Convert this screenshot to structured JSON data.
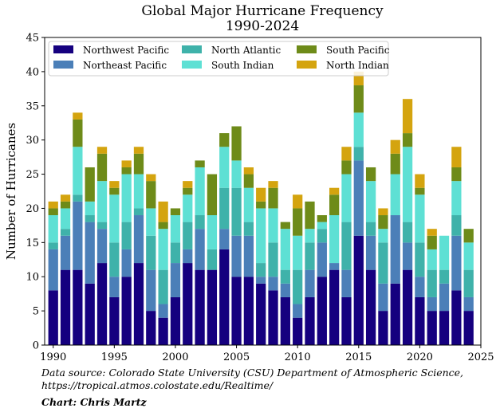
{
  "chart_data": {
    "type": "bar",
    "stacked": true,
    "title": "Global Major Hurricane Frequency",
    "subtitle": "1990-2024",
    "xlabel": "",
    "ylabel": "Number of Hurricanes",
    "xlim": [
      1989.3,
      2025
    ],
    "ylim": [
      0,
      45
    ],
    "xticks": [
      1990,
      1995,
      2000,
      2005,
      2010,
      2015,
      2020,
      2025
    ],
    "yticks": [
      0,
      5,
      10,
      15,
      20,
      25,
      30,
      35,
      40,
      45
    ],
    "legend_position": "top-left",
    "x": [
      1990,
      1991,
      1992,
      1993,
      1994,
      1995,
      1996,
      1997,
      1998,
      1999,
      2000,
      2001,
      2002,
      2003,
      2004,
      2005,
      2006,
      2007,
      2008,
      2009,
      2010,
      2011,
      2012,
      2013,
      2014,
      2015,
      2016,
      2017,
      2018,
      2019,
      2020,
      2021,
      2022,
      2023,
      2024
    ],
    "series": [
      {
        "name": "Northwest Pacific",
        "color": "#15007F",
        "values": [
          8,
          11,
          11,
          9,
          12,
          7,
          10,
          12,
          5,
          4,
          7,
          12,
          11,
          11,
          14,
          10,
          10,
          9,
          8,
          7,
          4,
          7,
          10,
          11,
          7,
          16,
          11,
          5,
          9,
          11,
          7,
          5,
          5,
          8,
          5
        ]
      },
      {
        "name": "Northeast Pacific",
        "color": "#4B7FB8",
        "values": [
          6,
          5,
          10,
          9,
          5,
          3,
          4,
          7,
          6,
          2,
          5,
          2,
          6,
          0,
          3,
          6,
          6,
          1,
          2,
          2,
          2,
          4,
          5,
          1,
          4,
          11,
          5,
          4,
          10,
          4,
          3,
          2,
          4,
          8,
          2
        ]
      },
      {
        "name": "North Atlantic",
        "color": "#3FB2AA",
        "values": [
          1,
          1,
          1,
          1,
          1,
          5,
          4,
          1,
          5,
          5,
          3,
          4,
          2,
          3,
          6,
          7,
          2,
          2,
          5,
          2,
          5,
          4,
          2,
          0,
          7,
          2,
          2,
          6,
          0,
          3,
          5,
          4,
          2,
          3,
          4
        ]
      },
      {
        "name": "South Indian",
        "color": "#5EE0D4",
        "values": [
          4,
          3,
          7,
          2,
          6,
          7,
          7,
          5,
          4,
          6,
          4,
          4,
          7,
          5,
          6,
          4,
          5,
          8,
          5,
          6,
          5,
          2,
          1,
          7,
          7,
          5,
          6,
          2,
          6,
          11,
          7,
          3,
          5,
          5,
          4
        ]
      },
      {
        "name": "South Pacific",
        "color": "#6E8B19",
        "values": [
          1,
          1,
          4,
          5,
          4,
          1,
          1,
          3,
          4,
          1,
          1,
          1,
          1,
          6,
          2,
          5,
          2,
          1,
          3,
          1,
          4,
          4,
          1,
          3,
          2,
          4,
          2,
          2,
          3,
          2,
          1,
          2,
          0,
          2,
          2
        ]
      },
      {
        "name": "North Indian",
        "color": "#D4A40F",
        "values": [
          1,
          1,
          1,
          0,
          1,
          1,
          1,
          1,
          1,
          3,
          0,
          1,
          0,
          0,
          0,
          0,
          1,
          2,
          1,
          0,
          2,
          0,
          0,
          1,
          2,
          2,
          0,
          1,
          2,
          5,
          2,
          1,
          0,
          3,
          0
        ]
      }
    ]
  },
  "footer": {
    "source_line1": "Data source: Colorado State University (CSU) Department of Atmospheric Science,",
    "source_line2": "https://tropical.atmos.colostate.edu/Realtime/",
    "credit": "Chart: Chris Martz"
  }
}
